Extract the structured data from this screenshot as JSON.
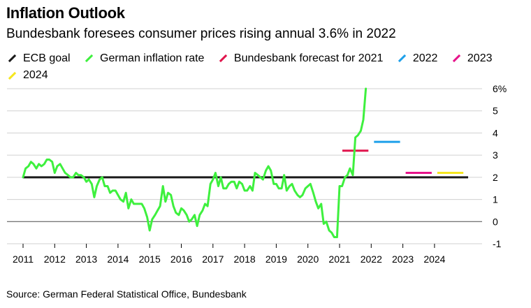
{
  "title": "Inflation Outlook",
  "subtitle": "Bundesbank foresees consumer prices rising annual 3.6% in 2022",
  "source": "Source: German Federal Statistical Office, Bundesbank",
  "chart_data": {
    "type": "line",
    "xlim": [
      2011,
      2025
    ],
    "ylim": [
      -1,
      6
    ],
    "y_ticks": [
      6,
      5,
      4,
      3,
      2,
      1,
      0,
      -1
    ],
    "y_tick_labels": [
      "6%",
      "5",
      "4",
      "3",
      "2",
      "1",
      "0",
      "-1"
    ],
    "x_ticks": [
      2011,
      2012,
      2013,
      2014,
      2015,
      2016,
      2017,
      2018,
      2019,
      2020,
      2021,
      2022,
      2023,
      2024
    ],
    "grid": true,
    "legend": [
      {
        "label": "ECB goal",
        "color": "#1a1a1a"
      },
      {
        "label": "German inflation rate",
        "color": "#3ef03e"
      },
      {
        "label": "Bundesbank forecast for 2021",
        "color": "#e0144c"
      },
      {
        "label": "2022",
        "color": "#1ea0ea"
      },
      {
        "label": "2023",
        "color": "#e6138a"
      },
      {
        "label": "2024",
        "color": "#f5e61e"
      }
    ],
    "ecb_goal": {
      "name": "ECB goal",
      "value": 2.0,
      "x_range": [
        2011,
        2025
      ],
      "color": "#1a1a1a"
    },
    "forecasts": [
      {
        "name": "Bundesbank forecast for 2021",
        "x_range": [
          2021.0,
          2022.0
        ],
        "value": 3.2,
        "color": "#e0144c"
      },
      {
        "name": "2022",
        "x_range": [
          2022.0,
          2023.0
        ],
        "value": 3.6,
        "color": "#1ea0ea"
      },
      {
        "name": "2023",
        "x_range": [
          2023.0,
          2024.0
        ],
        "value": 2.2,
        "color": "#e6138a"
      },
      {
        "name": "2024",
        "x_range": [
          2024.0,
          2025.0
        ],
        "value": 2.2,
        "color": "#f5e61e"
      }
    ],
    "series": [
      {
        "name": "German inflation rate",
        "color": "#3ef03e",
        "x": [
          2011.0,
          2011.08,
          2011.17,
          2011.25,
          2011.33,
          2011.42,
          2011.5,
          2011.58,
          2011.67,
          2011.75,
          2011.83,
          2011.92,
          2012.0,
          2012.08,
          2012.17,
          2012.25,
          2012.33,
          2012.42,
          2012.5,
          2012.58,
          2012.67,
          2012.75,
          2012.83,
          2012.92,
          2013.0,
          2013.08,
          2013.17,
          2013.25,
          2013.33,
          2013.42,
          2013.5,
          2013.58,
          2013.67,
          2013.75,
          2013.83,
          2013.92,
          2014.0,
          2014.08,
          2014.17,
          2014.25,
          2014.33,
          2014.42,
          2014.5,
          2014.58,
          2014.67,
          2014.75,
          2014.83,
          2014.92,
          2015.0,
          2015.08,
          2015.17,
          2015.25,
          2015.33,
          2015.42,
          2015.5,
          2015.58,
          2015.67,
          2015.75,
          2015.83,
          2015.92,
          2016.0,
          2016.08,
          2016.17,
          2016.25,
          2016.33,
          2016.42,
          2016.5,
          2016.58,
          2016.67,
          2016.75,
          2016.83,
          2016.92,
          2017.0,
          2017.08,
          2017.17,
          2017.25,
          2017.33,
          2017.42,
          2017.5,
          2017.58,
          2017.67,
          2017.75,
          2017.83,
          2017.92,
          2018.0,
          2018.08,
          2018.17,
          2018.25,
          2018.33,
          2018.42,
          2018.5,
          2018.58,
          2018.67,
          2018.75,
          2018.83,
          2018.92,
          2019.0,
          2019.08,
          2019.17,
          2019.25,
          2019.33,
          2019.42,
          2019.5,
          2019.58,
          2019.67,
          2019.75,
          2019.83,
          2019.92,
          2020.0,
          2020.08,
          2020.17,
          2020.25,
          2020.33,
          2020.42,
          2020.5,
          2020.58,
          2020.67,
          2020.75,
          2020.83,
          2020.92,
          2021.0,
          2021.08,
          2021.17,
          2021.25,
          2021.33,
          2021.42,
          2021.5,
          2021.58,
          2021.67,
          2021.75,
          2021.83
        ],
        "values": [
          2.0,
          2.4,
          2.5,
          2.7,
          2.6,
          2.4,
          2.6,
          2.5,
          2.6,
          2.8,
          2.8,
          2.7,
          2.2,
          2.5,
          2.6,
          2.4,
          2.2,
          2.1,
          2.0,
          2.0,
          2.2,
          2.1,
          2.1,
          2.0,
          1.8,
          1.9,
          1.7,
          1.1,
          1.6,
          1.9,
          2.0,
          1.6,
          1.6,
          1.3,
          1.4,
          1.4,
          1.2,
          1.0,
          0.9,
          1.3,
          0.6,
          1.0,
          0.8,
          0.8,
          0.8,
          0.8,
          0.6,
          0.2,
          -0.4,
          0.1,
          0.3,
          0.5,
          0.7,
          1.6,
          0.9,
          1.3,
          1.2,
          0.7,
          0.4,
          0.3,
          0.6,
          0.5,
          0.3,
          0.0,
          0.1,
          0.3,
          -0.2,
          0.3,
          0.5,
          0.8,
          0.7,
          1.7,
          1.9,
          2.2,
          1.6,
          2.0,
          1.5,
          1.5,
          1.7,
          1.8,
          1.8,
          1.5,
          1.8,
          1.7,
          1.4,
          1.4,
          1.6,
          1.4,
          2.2,
          2.1,
          2.0,
          1.9,
          2.3,
          2.5,
          2.3,
          1.7,
          1.7,
          1.5,
          1.5,
          2.1,
          1.4,
          1.6,
          1.7,
          1.4,
          1.2,
          1.1,
          1.2,
          1.5,
          1.6,
          1.7,
          1.3,
          0.9,
          0.6,
          0.8,
          -0.1,
          0.0,
          -0.4,
          -0.5,
          -0.7,
          -0.7,
          1.6,
          1.6,
          2.0,
          2.1,
          2.4,
          2.1,
          3.8,
          3.9,
          4.1,
          4.6,
          6.0
        ]
      }
    ]
  }
}
